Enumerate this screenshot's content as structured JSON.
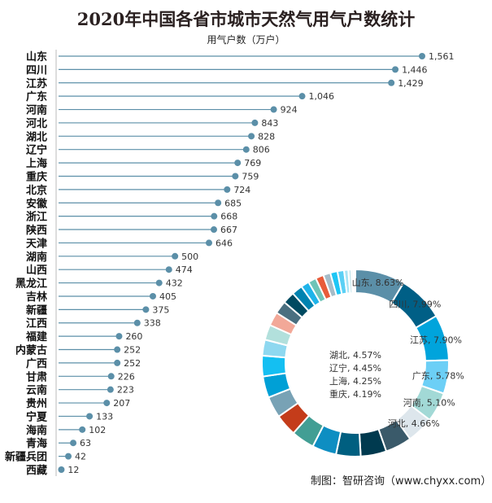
{
  "chart_data": [
    {
      "type": "lollipop-bar",
      "title": "2020年中国各省市城市天然气用气户数统计",
      "unit_label": "用气户数（万户）",
      "categories": [
        "山东",
        "四川",
        "江苏",
        "广东",
        "河南",
        "河北",
        "湖北",
        "辽宁",
        "上海",
        "重庆",
        "北京",
        "安徽",
        "浙江",
        "陕西",
        "天津",
        "湖南",
        "山西",
        "黑龙江",
        "吉林",
        "新疆",
        "江西",
        "福建",
        "内蒙古",
        "广西",
        "甘肃",
        "云南",
        "贵州",
        "宁夏",
        "海南",
        "青海",
        "新疆兵团",
        "西藏"
      ],
      "values": [
        1561,
        1446,
        1429,
        1046,
        924,
        843,
        828,
        806,
        769,
        759,
        724,
        685,
        668,
        667,
        646,
        500,
        474,
        432,
        405,
        375,
        338,
        260,
        252,
        252,
        226,
        223,
        207,
        133,
        102,
        63,
        42,
        12
      ],
      "value_labels": [
        "1,561",
        "1,446",
        "1,429",
        "1,046",
        "924",
        "843",
        "828",
        "806",
        "769",
        "759",
        "724",
        "685",
        "668",
        "667",
        "646",
        "500",
        "474",
        "432",
        "405",
        "375",
        "338",
        "260",
        "252",
        "252",
        "226",
        "223",
        "207",
        "133",
        "102",
        "63",
        "42",
        "12"
      ],
      "color": "#5b8fa8",
      "xlim": [
        0,
        1561
      ],
      "grid": false
    },
    {
      "type": "pie",
      "variant": "donut",
      "labels_shown": [
        {
          "name": "山东",
          "label": "山东, 8.63%"
        },
        {
          "name": "四川",
          "label": "四川, 7.99%"
        },
        {
          "name": "江苏",
          "label": "江苏, 7.90%"
        },
        {
          "name": "广东",
          "label": "广东, 5.78%"
        },
        {
          "name": "河南",
          "label": "河南, 5.10%"
        },
        {
          "name": "河北",
          "label": "河北, 4.66%"
        },
        {
          "name": "湖北",
          "label": "湖北, 4.57%"
        },
        {
          "name": "辽宁",
          "label": "辽宁, 4.45%"
        },
        {
          "name": "上海",
          "label": "上海, 4.25%"
        },
        {
          "name": "重庆",
          "label": "重庆, 4.19%"
        }
      ],
      "colors": [
        "#5b8fa8",
        "#005f86",
        "#00a4dc",
        "#6ccff6",
        "#a2d9d6",
        "#dde6ec",
        "#3a5a6a",
        "#003a4f",
        "#005f80",
        "#0e8ec2",
        "#429e94",
        "#c43c1a",
        "#78a2b5",
        "#00a0d6",
        "#14bff2",
        "#8ed8f0",
        "#b2e0dc",
        "#f2a898",
        "#4a6f80",
        "#004a61",
        "#0083b0",
        "#1fb4ea",
        "#6ec4b8",
        "#e85b3a",
        "#a5bcc8",
        "#1ec6f5",
        "#5cd0f5",
        "#a8e4f5",
        "#cce8ee",
        "#e0f2f8",
        "#eef7fa",
        "#f4fafc"
      ]
    }
  ],
  "source": "制图：智研咨询（www.chyxx.com）"
}
